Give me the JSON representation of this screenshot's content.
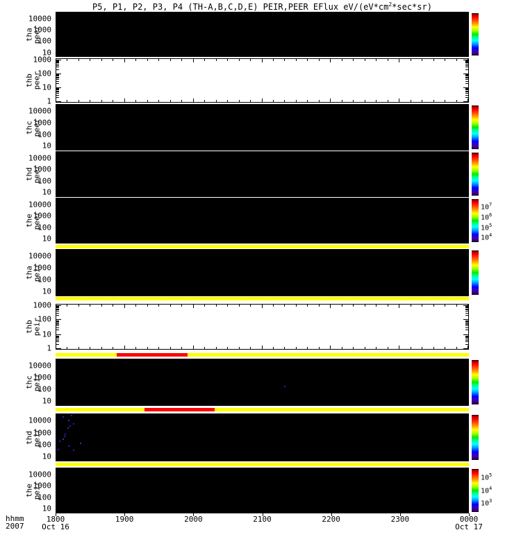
{
  "title": {
    "pre": "P5, P1, P2, P3, P4 (TH-A,B,C,D,E) PEIR,PEER EFlux eV/(eV*cm",
    "sup": "2",
    "post": "*sec*sr)"
  },
  "cb_base": "10",
  "colors": {
    "panel_black": "#000000",
    "panel_white": "#ffffff",
    "stripe_yellow": "#ffff00",
    "segment_red": "#ff0000",
    "speckle_blue": "#2222cc",
    "speckle_purple": "#5522bb",
    "rainbow_stops": [
      [
        "#000000",
        0
      ],
      [
        "#aa0000",
        3
      ],
      [
        "#ff0000",
        9
      ],
      [
        "#ff5500",
        18
      ],
      [
        "#ffaa00",
        26
      ],
      [
        "#ffff00",
        33
      ],
      [
        "#aaff00",
        41
      ],
      [
        "#00ee00",
        50
      ],
      [
        "#00ffaa",
        58
      ],
      [
        "#00ffff",
        65
      ],
      [
        "#0099ff",
        73
      ],
      [
        "#0000ff",
        82
      ],
      [
        "#3300cc",
        89
      ],
      [
        "#440088",
        94
      ],
      [
        "#110022",
        100
      ]
    ]
  },
  "x_axis": {
    "corner_label": "hhmm",
    "year": "2007",
    "ticks": [
      "1800",
      "1900",
      "2000",
      "2100",
      "2200",
      "2300",
      "0000"
    ],
    "tick_dates": [
      "Oct 16",
      "",
      "",
      "",
      "",
      "",
      "Oct 17"
    ]
  },
  "chart_data": {
    "type": "heatmap",
    "title": "P5, P1, P2, P3, P4 (TH-A,B,C,D,E) PEIR,PEER EFlux eV/(eV*cm2*sec*sr)",
    "x_range": [
      "2007-10-16 1800 UT",
      "2007-10-17 0000 UT"
    ],
    "x_tick_interval": "1 hour",
    "y_scale": "log",
    "legend_position": "right colorbars",
    "panels": [
      {
        "name": "tha peer",
        "label_lines": [
          "tha",
          "peer"
        ],
        "bg": "black",
        "y_ticks": [
          "10000",
          "1000",
          "100",
          "10"
        ],
        "colorbar": true,
        "cb_exponents": [],
        "speckles": [],
        "data_note": "no flux above background (all black)"
      },
      {
        "name": "thb peer",
        "label_lines": [
          "thb",
          "peer"
        ],
        "bg": "white",
        "y_ticks": [
          "1000",
          "100",
          "10",
          "1"
        ],
        "colorbar": false,
        "cb_exponents": [],
        "speckles": [],
        "data_note": "no data (blank panel)"
      },
      {
        "name": "thc peer",
        "label_lines": [
          "thc",
          "peer"
        ],
        "bg": "black",
        "y_ticks": [
          "10000",
          "1000",
          "100",
          "10"
        ],
        "colorbar": true,
        "cb_exponents": [],
        "speckles": [],
        "data_note": "no flux above background (all black)"
      },
      {
        "name": "thd peer",
        "label_lines": [
          "thd",
          "peer"
        ],
        "bg": "black",
        "y_ticks": [
          "10000",
          "1000",
          "100",
          "10"
        ],
        "colorbar": true,
        "cb_exponents": [],
        "speckles": [],
        "data_note": "no flux above background (all black)"
      },
      {
        "name": "the peer",
        "label_lines": [
          "the",
          "peer"
        ],
        "bg": "black",
        "y_ticks": [
          "10000",
          "1000",
          "100",
          "10"
        ],
        "colorbar": true,
        "cb_exponents": [
          "7",
          "6",
          "5",
          "4"
        ],
        "speckles": [],
        "data_note": "colorbar scale 10^4 - 10^7"
      },
      {
        "name": "tha peir",
        "label_lines": [
          "tha",
          "peir"
        ],
        "bg": "black",
        "y_ticks": [
          "10000",
          "1000",
          "100",
          "10"
        ],
        "colorbar": true,
        "cb_exponents": [],
        "speckles": [],
        "data_note": "saturated yellow rows at top and bottom energy bins"
      },
      {
        "name": "thb peir",
        "label_lines": [
          "thb",
          "peir"
        ],
        "bg": "white",
        "y_ticks": [
          "1000",
          "100",
          "10",
          "1"
        ],
        "colorbar": false,
        "cb_exponents": [],
        "speckles": [],
        "data_note": "no data (blank panel)"
      },
      {
        "name": "thc peir",
        "label_lines": [
          "thc",
          "peir"
        ],
        "bg": "black",
        "y_ticks": [
          "10000",
          "1000",
          "100",
          "10"
        ],
        "colorbar": true,
        "cb_exponents": [],
        "speckles": [
          [
            0.553,
            0.57
          ]
        ],
        "data_note": "single faint blue point near 2120 UT"
      },
      {
        "name": "thd peir",
        "label_lines": [
          "thd",
          "peir"
        ],
        "bg": "black",
        "y_ticks": [
          "10000",
          "1000",
          "100",
          "10"
        ],
        "colorbar": true,
        "cb_exponents": [],
        "speckles": [
          [
            0.017,
            0.06
          ],
          [
            0.037,
            0.03
          ],
          [
            0.03,
            0.13
          ],
          [
            0.042,
            0.2
          ],
          [
            0.034,
            0.25
          ],
          [
            0.029,
            0.29
          ],
          [
            0.022,
            0.42
          ],
          [
            0.02,
            0.46
          ],
          [
            0.017,
            0.52
          ],
          [
            0.008,
            0.57
          ],
          [
            0.03,
            0.67
          ],
          [
            0.059,
            0.61
          ],
          [
            0.005,
            0.74
          ],
          [
            0.042,
            0.75
          ]
        ],
        "data_note": "cluster of faint blue/purple points 1800-1815 UT"
      },
      {
        "name": "the peir",
        "label_lines": [
          "the",
          "peir"
        ],
        "bg": "black",
        "y_ticks": [
          "10000",
          "1000",
          "100",
          "10"
        ],
        "colorbar": true,
        "cb_exponents": [
          "5",
          "4",
          "3"
        ],
        "speckles": [],
        "data_note": "colorbar scale 10^3 - 10^5"
      }
    ],
    "stripes": [
      {
        "location": "between the peer and tha peir",
        "red_segment": null
      },
      {
        "location": "between tha peir and thb peir",
        "red_segment": null
      },
      {
        "location": "between thb peir and thc peir",
        "red_segment": {
          "start_frac": 0.148,
          "end_frac": 0.319,
          "approx_time": "1853-1955 UT"
        }
      },
      {
        "location": "between thc peir and thd peir",
        "red_segment": {
          "start_frac": 0.215,
          "end_frac": 0.385,
          "approx_time": "1917-2020 UT"
        }
      },
      {
        "location": "between thd peir and the peir",
        "red_segment": null
      }
    ]
  }
}
